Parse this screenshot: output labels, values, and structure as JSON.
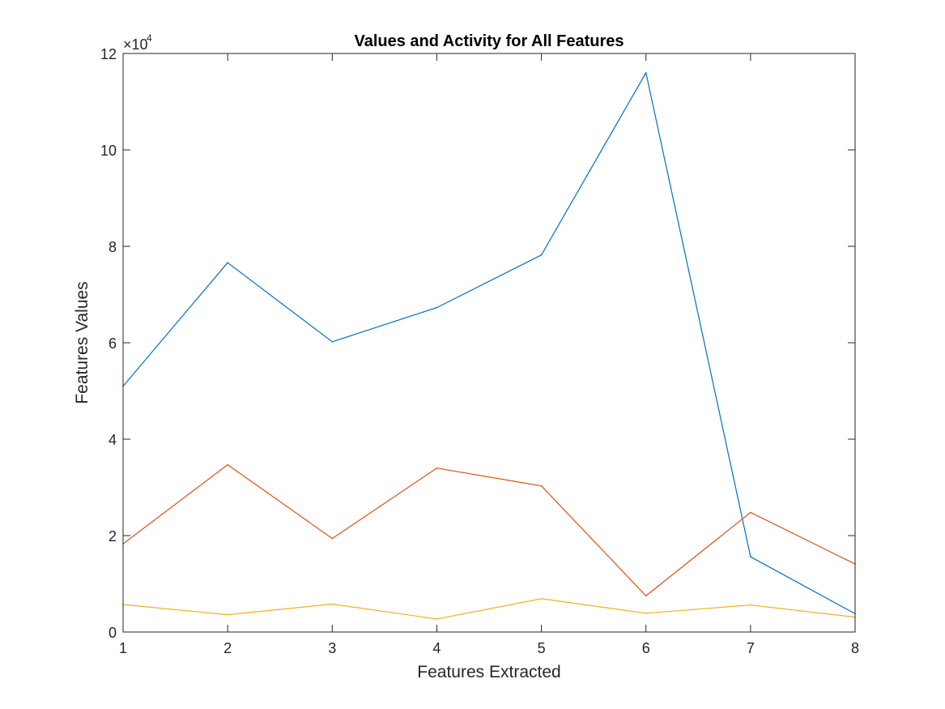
{
  "chart_data": {
    "type": "line",
    "title": "Values and Activity  for All Features",
    "xlabel": "Features Extracted",
    "ylabel": "Features Values",
    "x": [
      1,
      2,
      3,
      4,
      5,
      6,
      7,
      8
    ],
    "xlim": [
      1,
      8
    ],
    "ylim": [
      0,
      120000
    ],
    "y_exponent_base": "×10",
    "y_exponent_power": "4",
    "x_ticks": [
      1,
      2,
      3,
      4,
      5,
      6,
      7,
      8
    ],
    "y_ticks": [
      0,
      20000,
      40000,
      60000,
      80000,
      100000,
      120000
    ],
    "y_tick_labels": [
      "0",
      "2",
      "4",
      "6",
      "8",
      "10",
      "12"
    ],
    "grid": false,
    "series": [
      {
        "values": [
          51000,
          76600,
          60200,
          67300,
          78200,
          116000,
          15600,
          3800
        ],
        "color": "#0072BD"
      },
      {
        "values": [
          18300,
          34700,
          19400,
          34000,
          30300,
          7500,
          24800,
          14100
        ],
        "color": "#D95319"
      },
      {
        "values": [
          5700,
          3600,
          5800,
          2700,
          6900,
          3900,
          5600,
          3100
        ],
        "color": "#EDB120"
      }
    ]
  }
}
